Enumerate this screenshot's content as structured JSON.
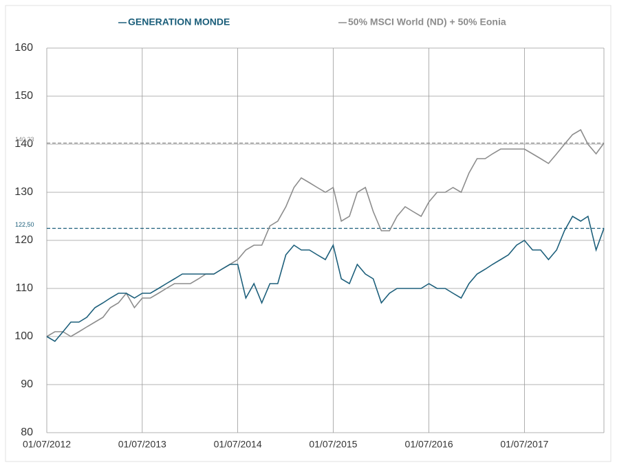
{
  "chart_data": {
    "type": "line",
    "x": [
      "2012-07-01",
      "2012-08-01",
      "2012-09-01",
      "2012-10-01",
      "2012-11-01",
      "2012-12-01",
      "2013-01-01",
      "2013-02-01",
      "2013-03-01",
      "2013-04-01",
      "2013-05-01",
      "2013-06-01",
      "2013-07-01",
      "2013-08-01",
      "2013-09-01",
      "2013-10-01",
      "2013-11-01",
      "2013-12-01",
      "2014-01-01",
      "2014-02-01",
      "2014-03-01",
      "2014-04-01",
      "2014-05-01",
      "2014-06-01",
      "2014-07-01",
      "2014-08-01",
      "2014-09-01",
      "2014-10-01",
      "2014-11-01",
      "2014-12-01",
      "2015-01-01",
      "2015-02-01",
      "2015-03-01",
      "2015-04-01",
      "2015-05-01",
      "2015-06-01",
      "2015-07-01",
      "2015-08-01",
      "2015-09-01",
      "2015-10-01",
      "2015-11-01",
      "2015-12-01",
      "2016-01-01",
      "2016-02-01",
      "2016-03-01",
      "2016-04-01",
      "2016-05-01",
      "2016-06-01",
      "2016-07-01",
      "2016-08-01",
      "2016-09-01",
      "2016-10-01",
      "2016-11-01",
      "2016-12-01",
      "2017-01-01",
      "2017-02-01",
      "2017-03-01",
      "2017-04-01",
      "2017-05-01",
      "2017-06-01",
      "2017-07-01",
      "2017-08-01",
      "2017-09-01",
      "2017-10-01",
      "2017-11-01",
      "2017-12-01",
      "2018-01-01",
      "2018-02-01",
      "2018-03-01",
      "2018-04-01",
      "2018-05-01"
    ],
    "series": [
      {
        "name": "GENERATION MONDE",
        "color": "#1b5e7a",
        "values": [
          100,
          99,
          101,
          103,
          103,
          104,
          106,
          107,
          108,
          109,
          109,
          108,
          109,
          109,
          110,
          111,
          112,
          113,
          113,
          113,
          113,
          113,
          114,
          115,
          115,
          108,
          111,
          107,
          111,
          111,
          117,
          119,
          118,
          118,
          117,
          116,
          119,
          112,
          111,
          115,
          113,
          112,
          107,
          109,
          110,
          110,
          110,
          110,
          111,
          110,
          110,
          109,
          108,
          111,
          113,
          114,
          115,
          116,
          117,
          119,
          120,
          118,
          118,
          116,
          118,
          122,
          125,
          124,
          125,
          118,
          122.5
        ]
      },
      {
        "name": "50% MSCI World (ND) + 50% Eonia",
        "color": "#8c8c8c",
        "values": [
          100,
          101,
          101,
          100,
          101,
          102,
          103,
          104,
          106,
          107,
          109,
          106,
          108,
          108,
          109,
          110,
          111,
          111,
          111,
          112,
          113,
          113,
          114,
          115,
          116,
          118,
          119,
          119,
          123,
          124,
          127,
          131,
          133,
          132,
          131,
          130,
          131,
          124,
          125,
          130,
          131,
          126,
          122,
          122,
          125,
          127,
          126,
          125,
          128,
          130,
          130,
          131,
          130,
          134,
          137,
          137,
          138,
          139,
          139,
          139,
          139,
          138,
          137,
          136,
          138,
          140,
          142,
          143,
          140,
          138,
          140.23
        ]
      }
    ],
    "annotations": [
      {
        "value": 140.23,
        "label": "140,23",
        "color": "#8c8c8c"
      },
      {
        "value": 122.5,
        "label": "122,50",
        "color": "#1b5e7a"
      }
    ],
    "xlim": [
      "2012-07-01",
      "2018-05-01"
    ],
    "xticks": [
      {
        "value": "2012-07-01",
        "label": "01/07/2012"
      },
      {
        "value": "2013-07-01",
        "label": "01/07/2013"
      },
      {
        "value": "2014-07-01",
        "label": "01/07/2014"
      },
      {
        "value": "2015-07-01",
        "label": "01/07/2015"
      },
      {
        "value": "2016-07-01",
        "label": "01/07/2016"
      },
      {
        "value": "2017-07-01",
        "label": "01/07/2017"
      }
    ],
    "ylim": [
      80,
      160
    ],
    "yticks": [
      80,
      90,
      100,
      110,
      120,
      130,
      140,
      150,
      160
    ],
    "grid": true,
    "legend": "top"
  }
}
